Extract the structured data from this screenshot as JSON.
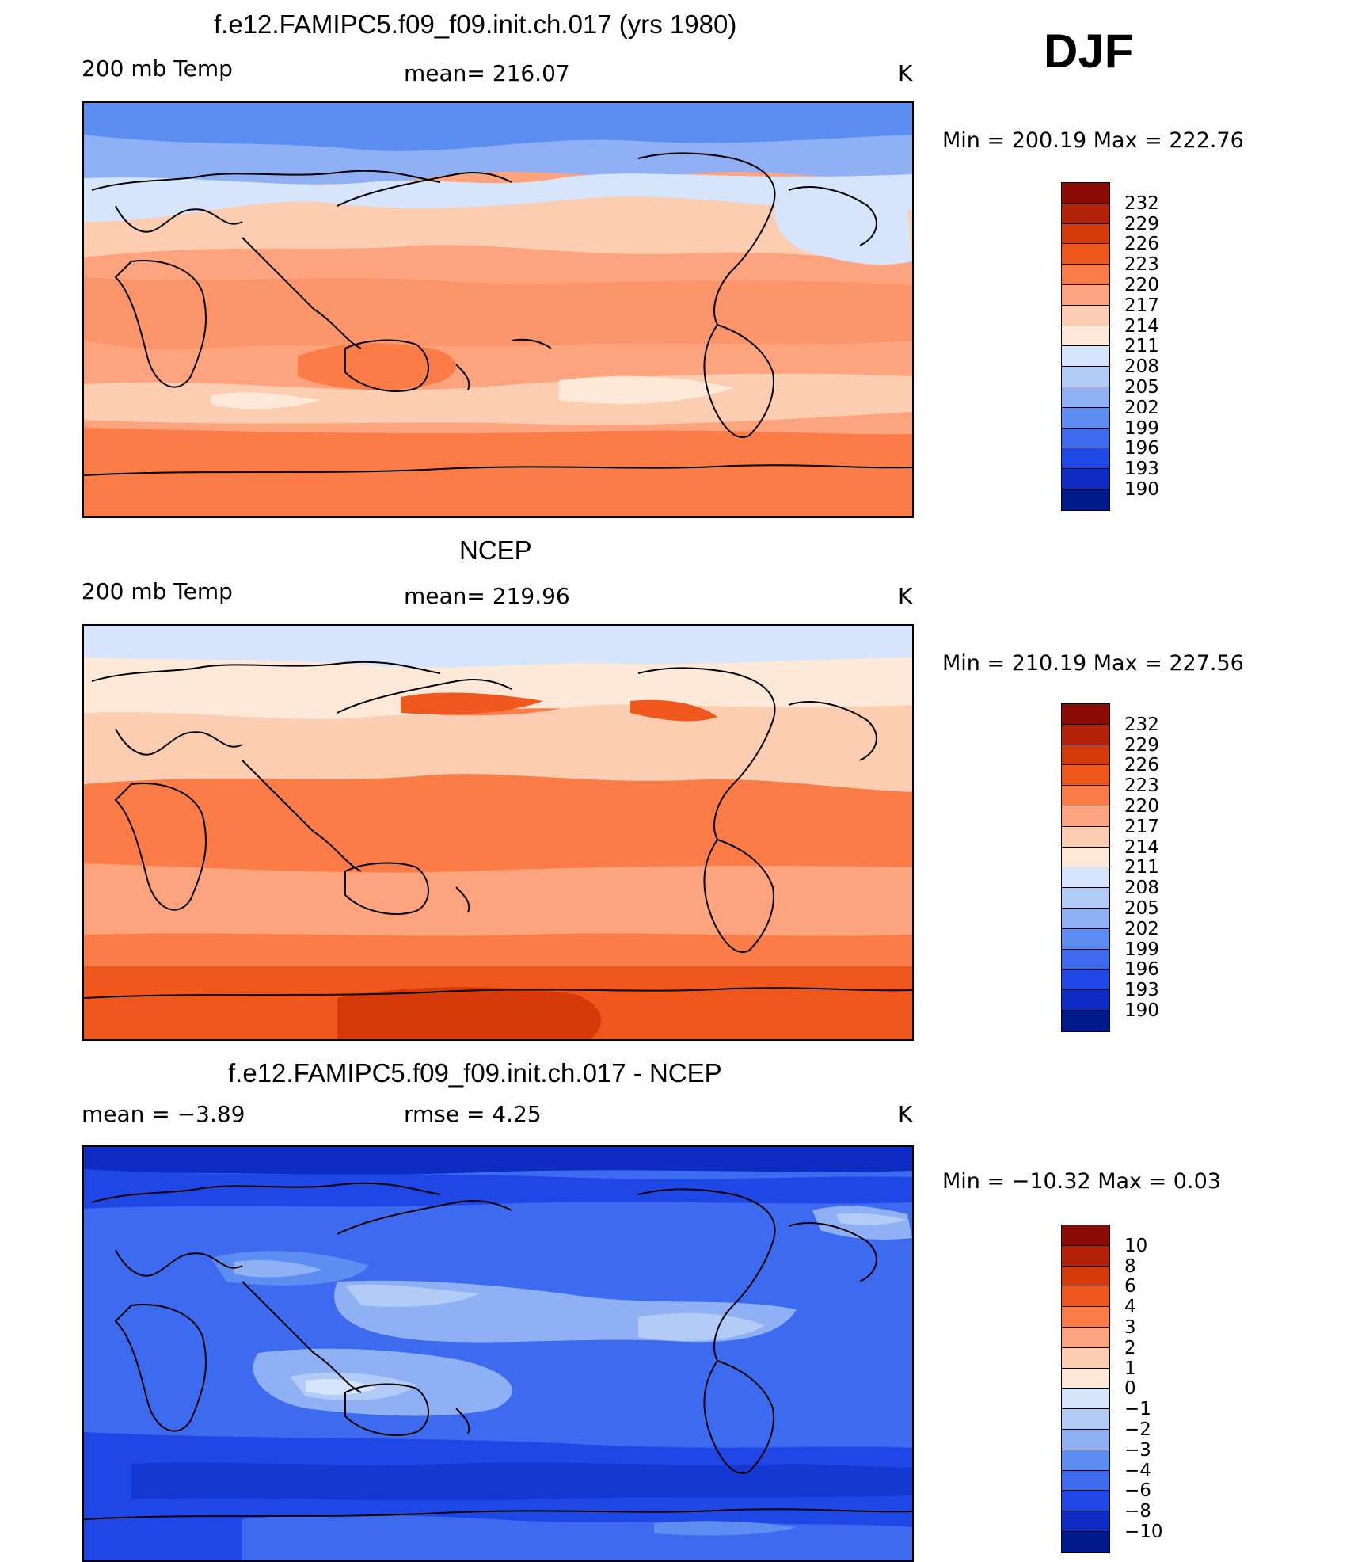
{
  "season": "DJF",
  "panels": [
    {
      "id": "model",
      "title": "f.e12.FAMIPC5.f09_f09.init.ch.017 (yrs 1980)",
      "left_label": "200 mb Temp",
      "center_label": "mean=  216.07",
      "unit": "K",
      "minmax": "Min  =  200.19  Max  =  222.76",
      "colorbar_labels": [
        "232",
        "229",
        "226",
        "223",
        "220",
        "217",
        "214",
        "211",
        "208",
        "205",
        "202",
        "199",
        "196",
        "193",
        "190"
      ],
      "colorbar_colors": [
        "#8b0c05",
        "#b32209",
        "#d63a0b",
        "#f0571c",
        "#fb7c47",
        "#fda37d",
        "#fdcdb1",
        "#fee9d9",
        "#d6e5fb",
        "#b2cbf7",
        "#8fb0f4",
        "#5b8ef0",
        "#3d6bf0",
        "#1e47e6",
        "#0e2cc3",
        "#001a8c"
      ]
    },
    {
      "id": "obs",
      "title": "NCEP",
      "left_label": "200 mb Temp",
      "center_label": "mean=  219.96",
      "unit": "K",
      "minmax": "Min  =  210.19  Max  =  227.56",
      "colorbar_labels": [
        "232",
        "229",
        "226",
        "223",
        "220",
        "217",
        "214",
        "211",
        "208",
        "205",
        "202",
        "199",
        "196",
        "193",
        "190"
      ],
      "colorbar_colors": [
        "#8b0c05",
        "#b32209",
        "#d63a0b",
        "#f0571c",
        "#fb7c47",
        "#fda37d",
        "#fdcdb1",
        "#fee9d9",
        "#d6e5fb",
        "#b2cbf7",
        "#8fb0f4",
        "#5b8ef0",
        "#3d6bf0",
        "#1e47e6",
        "#0e2cc3",
        "#001a8c"
      ]
    },
    {
      "id": "diff",
      "title": "f.e12.FAMIPC5.f09_f09.init.ch.017 - NCEP",
      "left_label": "mean  =     −3.89",
      "center_label": "rmse  =      4.25",
      "unit": "K",
      "minmax": "Min  =  −10.32  Max  =      0.03",
      "colorbar_labels": [
        "10",
        "8",
        "6",
        "4",
        "3",
        "2",
        "1",
        "0",
        "−1",
        "−2",
        "−3",
        "−4",
        "−6",
        "−8",
        "−10"
      ],
      "colorbar_colors": [
        "#8b0c05",
        "#b32209",
        "#d63a0b",
        "#f0571c",
        "#fb7c47",
        "#fda37d",
        "#fdcdb1",
        "#fee9d9",
        "#d6e5fb",
        "#b2cbf7",
        "#8fb0f4",
        "#5b8ef0",
        "#3d6bf0",
        "#1e47e6",
        "#0e2cc3",
        "#001a8c"
      ]
    }
  ]
}
